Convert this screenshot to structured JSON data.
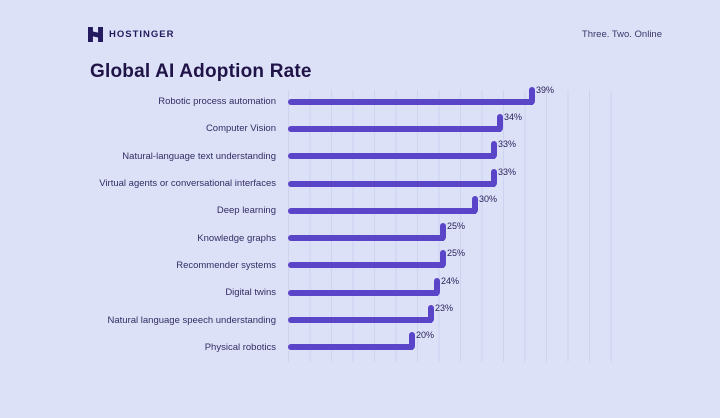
{
  "header": {
    "brand": "HOSTINGER",
    "tagline": "Three. Two. Online"
  },
  "title": "Global AI Adoption Rate",
  "colors": {
    "background": "#dce1f8",
    "bar": "#5a45c9",
    "ink": "#241a5e"
  },
  "chart_data": {
    "type": "bar",
    "orientation": "horizontal",
    "title": "Global AI Adoption Rate",
    "categories": [
      "Robotic process automation",
      "Computer Vision",
      "Natural-language text understanding",
      "Virtual agents or conversational interfaces",
      "Deep learning",
      "Knowledge graphs",
      "Recommender systems",
      "Digital twins",
      "Natural language speech understanding",
      "Physical robotics"
    ],
    "values": [
      39,
      34,
      33,
      33,
      30,
      25,
      25,
      24,
      23,
      20
    ],
    "value_suffix": "%",
    "xlabel": "",
    "ylabel": "",
    "xlim": [
      0,
      54
    ],
    "grid": "vertical-faint",
    "legend": "none"
  }
}
